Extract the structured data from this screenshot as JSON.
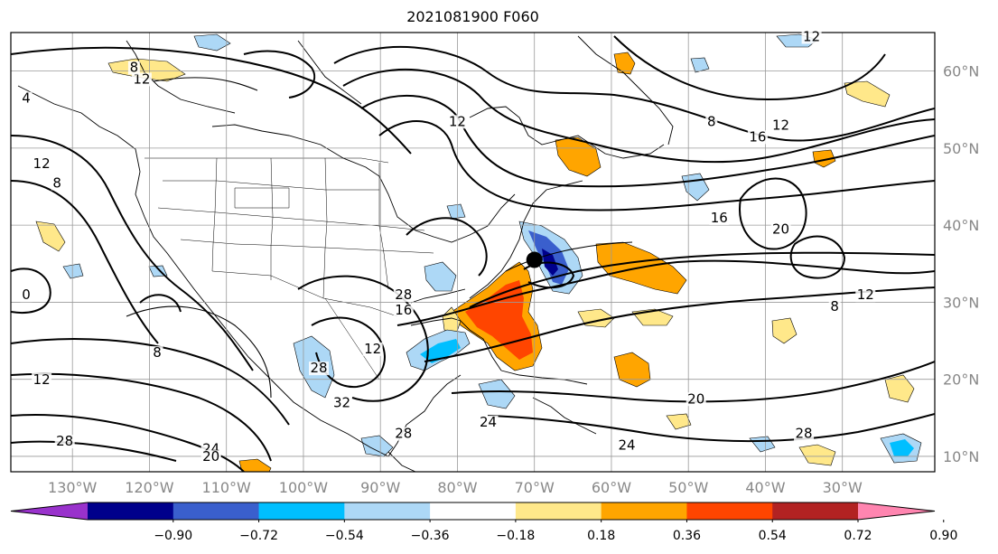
{
  "title": "2021081900 F060",
  "map": {
    "lat_labels": [
      "60°N",
      "50°N",
      "40°N",
      "30°N",
      "20°N",
      "10°N"
    ],
    "lat_values": [
      60,
      50,
      40,
      30,
      20,
      10
    ],
    "lon_labels": [
      "130°W",
      "120°W",
      "110°W",
      "100°W",
      "90°W",
      "80°W",
      "70°W",
      "60°W",
      "50°W",
      "40°W",
      "30°W"
    ],
    "lon_values": [
      -130,
      -120,
      -110,
      -100,
      -90,
      -80,
      -70,
      -60,
      -50,
      -40,
      -30
    ],
    "extent": {
      "lon_min": -138,
      "lon_max": -18,
      "lat_min": 8,
      "lat_max": 65
    },
    "contour_labels": [
      {
        "text": "12",
        "lon": -121,
        "lat": 58.5
      },
      {
        "text": "12",
        "lon": -34,
        "lat": 64
      },
      {
        "text": "12",
        "lon": -80,
        "lat": 53
      },
      {
        "text": "8",
        "lon": -122,
        "lat": 60
      },
      {
        "text": "8",
        "lon": -47,
        "lat": 53
      },
      {
        "text": "8",
        "lon": -132,
        "lat": 45
      },
      {
        "text": "12",
        "lon": -134,
        "lat": 47.5
      },
      {
        "text": "16",
        "lon": -41,
        "lat": 51
      },
      {
        "text": "12",
        "lon": -38,
        "lat": 52.5
      },
      {
        "text": "16",
        "lon": -46,
        "lat": 40.5
      },
      {
        "text": "20",
        "lon": -38,
        "lat": 39
      },
      {
        "text": "12",
        "lon": -27,
        "lat": 30.5
      },
      {
        "text": "8",
        "lon": -31,
        "lat": 29
      },
      {
        "text": "8",
        "lon": -119,
        "lat": 23
      },
      {
        "text": "12",
        "lon": -134,
        "lat": 19.5
      },
      {
        "text": "28",
        "lon": -131,
        "lat": 11.5
      },
      {
        "text": "24",
        "lon": -112,
        "lat": 10.5
      },
      {
        "text": "20",
        "lon": -112,
        "lat": 9.5
      },
      {
        "text": "28",
        "lon": -98,
        "lat": 21
      },
      {
        "text": "12",
        "lon": -91,
        "lat": 23.5
      },
      {
        "text": "16",
        "lon": -87,
        "lat": 28.5
      },
      {
        "text": "32",
        "lon": -95,
        "lat": 16.5
      },
      {
        "text": "28",
        "lon": -87,
        "lat": 12.5
      },
      {
        "text": "24",
        "lon": -76,
        "lat": 14
      },
      {
        "text": "20",
        "lon": -49,
        "lat": 17
      },
      {
        "text": "24",
        "lon": -58,
        "lat": 11
      },
      {
        "text": "28",
        "lon": -35,
        "lat": 12.5
      },
      {
        "text": "28",
        "lon": -87,
        "lat": 30.5
      },
      {
        "text": "4",
        "lon": -136,
        "lat": 56
      },
      {
        "text": "0",
        "lon": -136,
        "lat": 30.5
      }
    ]
  },
  "colorbar": {
    "tick_labels": [
      "−0.90",
      "−0.72",
      "−0.54",
      "−0.36",
      "−0.18",
      "0.18",
      "0.36",
      "0.54",
      "0.72",
      "0.90"
    ],
    "colors": [
      "#9932cc",
      "#00008b",
      "#3a5fcd",
      "#00bfff",
      "#add8f6",
      "#ffffff",
      "#ffe88a",
      "#ffa500",
      "#ff4500",
      "#b22222",
      "#ff85b0"
    ]
  },
  "low_center_marker": {
    "lon": -70,
    "lat": 35.5
  }
}
